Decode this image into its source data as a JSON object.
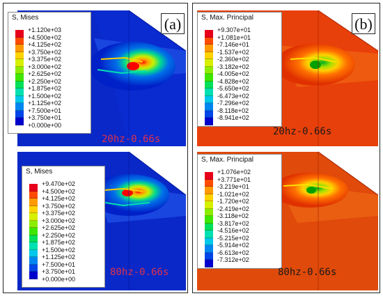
{
  "panels": [
    {
      "label": "(a)",
      "legend_colors": [
        "#e8001a",
        "#ff4b00",
        "#ff9a00",
        "#ffd300",
        "#d6f000",
        "#8ced00",
        "#3ee600",
        "#00e05a",
        "#00e0b0",
        "#00c8ea",
        "#0086f0",
        "#0045e8",
        "#0000cc"
      ],
      "legends": [
        {
          "title": "S, Mises",
          "values": [
            "+1.120e+03",
            "+4.500e+02",
            "+4.125e+02",
            "+3.750e+02",
            "+3.375e+02",
            "+3.000e+02",
            "+2.625e+02",
            "+2.250e+02",
            "+1.875e+02",
            "+1.500e+02",
            "+1.125e+02",
            "+7.500e+01",
            "+3.750e+01",
            "+0.000e+00"
          ]
        },
        {
          "title": "S, Mises",
          "values": [
            "+9.470e+02",
            "+4.500e+02",
            "+4.125e+02",
            "+3.750e+02",
            "+3.375e+02",
            "+3.000e+02",
            "+2.625e+02",
            "+2.250e+02",
            "+1.875e+02",
            "+1.500e+02",
            "+1.125e+02",
            "+7.500e+01",
            "+3.750e+01",
            "+0.000e+00"
          ]
        }
      ],
      "captions": [
        "20hz-0.66s",
        "80hz-0.66s"
      ],
      "caption_color": "#e0304a"
    },
    {
      "label": "(b)",
      "legend_colors": [
        "#e8001a",
        "#ff4b00",
        "#ff9a00",
        "#ffd300",
        "#d6f000",
        "#8ced00",
        "#3ee600",
        "#00e05a",
        "#00e0b0",
        "#00c8ea",
        "#0086f0",
        "#0045e8",
        "#0000cc"
      ],
      "legends": [
        {
          "title": "S, Max. Principal",
          "values": [
            "+9.307e+01",
            "+1.081e+01",
            "-7.146e+01",
            "-1.537e+02",
            "-2.360e+02",
            "-3.182e+02",
            "-4.005e+02",
            "-4.828e+02",
            "-5.650e+02",
            "-6.473e+02",
            "-7.296e+02",
            "-8.118e+02",
            "-8.941e+02"
          ]
        },
        {
          "title": "S, Max. Principal",
          "values": [
            "+1.076e+02",
            "+3.771e+01",
            "-3.219e+01",
            "-1.021e+02",
            "-1.720e+02",
            "-2.419e+02",
            "-3.118e+02",
            "-3.817e+02",
            "-4.516e+02",
            "-5.215e+02",
            "-5.914e+02",
            "-6.613e+02",
            "-7.312e+02"
          ]
        }
      ],
      "captions": [
        "20hz-0.66s",
        "80hz-0.66s"
      ],
      "caption_color": "#1a1a1a"
    }
  ]
}
